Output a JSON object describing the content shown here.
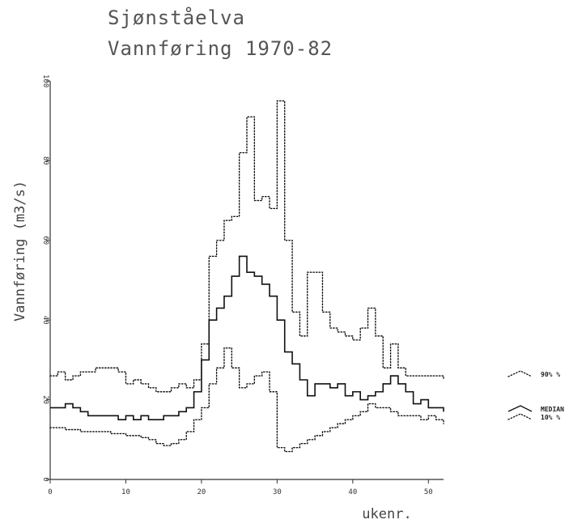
{
  "chart_data": {
    "type": "line",
    "title": "Sjønståelva",
    "subtitle": "Vannføring 1970-82",
    "xlabel": "ukenr.",
    "ylabel": "Vannføring (m3/s)",
    "xlim": [
      0,
      52
    ],
    "ylim": [
      0,
      100
    ],
    "xticks": [
      0,
      10,
      20,
      30,
      40,
      50
    ],
    "yticks": [
      0,
      20,
      40,
      60,
      80,
      100
    ],
    "grid": false,
    "legend_position": "right",
    "series": [
      {
        "name": "90% %",
        "style": "dotted",
        "values": [
          26,
          27,
          25,
          26,
          27,
          27,
          28,
          28,
          28,
          27,
          24,
          25,
          24,
          23,
          22,
          22,
          23,
          24,
          23,
          25,
          34,
          56,
          60,
          65,
          66,
          82,
          91,
          70,
          71,
          68,
          95,
          60,
          42,
          36,
          52,
          52,
          42,
          38,
          37,
          36,
          35,
          38,
          43,
          36,
          28,
          34,
          28,
          26,
          26,
          26,
          26,
          26,
          25
        ]
      },
      {
        "name": "MEDIAN",
        "style": "solid",
        "values": [
          18,
          18,
          19,
          18,
          17,
          16,
          16,
          16,
          16,
          15,
          16,
          15,
          16,
          15,
          15,
          16,
          16,
          17,
          18,
          22,
          30,
          40,
          43,
          46,
          51,
          56,
          52,
          51,
          49,
          46,
          40,
          32,
          29,
          25,
          21,
          24,
          24,
          23,
          24,
          21,
          22,
          20,
          21,
          22,
          24,
          26,
          24,
          22,
          19,
          20,
          18,
          18,
          17
        ]
      },
      {
        "name": "10% %",
        "style": "dotted",
        "values": [
          13,
          13,
          12.5,
          12.5,
          12,
          12,
          12,
          12,
          11.5,
          11.5,
          11,
          11,
          10.5,
          10,
          9,
          8.5,
          9,
          10,
          12,
          15,
          18,
          24,
          28,
          33,
          28,
          23,
          24,
          26,
          27,
          22,
          8,
          7,
          8,
          9,
          10,
          11,
          12,
          13,
          14,
          15,
          16,
          17,
          19,
          18,
          18,
          17,
          16,
          16,
          16,
          15,
          16,
          15,
          14
        ]
      }
    ]
  }
}
